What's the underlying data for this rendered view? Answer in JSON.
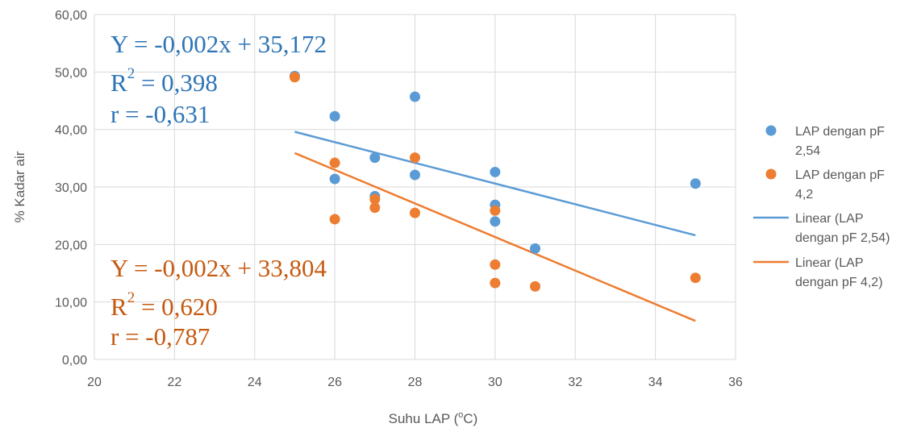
{
  "chart_data": {
    "type": "scatter",
    "xlabel": "Suhu LAP (",
    "xlabel_sup": "o",
    "xlabel_suffix": "C)",
    "ylabel": "% Kadar air",
    "xlim": [
      20,
      36
    ],
    "ylim": [
      0,
      60
    ],
    "xticks": [
      "20",
      "22",
      "24",
      "26",
      "28",
      "30",
      "32",
      "34",
      "36"
    ],
    "yticks": [
      "0,00",
      "10,00",
      "20,00",
      "30,00",
      "40,00",
      "50,00",
      "60,00"
    ],
    "grid": true,
    "legend_position": "right",
    "series": [
      {
        "name": "LAP dengan pF 2,54",
        "legend_lines": [
          "LAP dengan pF",
          "2,54"
        ],
        "color": "#5B9BD5",
        "points": [
          {
            "x": 25,
            "y": 49.3
          },
          {
            "x": 26,
            "y": 42.3
          },
          {
            "x": 26,
            "y": 31.4
          },
          {
            "x": 27,
            "y": 35.1
          },
          {
            "x": 27,
            "y": 28.4
          },
          {
            "x": 28,
            "y": 45.7
          },
          {
            "x": 28,
            "y": 32.1
          },
          {
            "x": 30,
            "y": 32.6
          },
          {
            "x": 30,
            "y": 26.9
          },
          {
            "x": 30,
            "y": 24.0
          },
          {
            "x": 31,
            "y": 19.3
          },
          {
            "x": 35,
            "y": 30.6
          }
        ]
      },
      {
        "name": "LAP dengan pF 4,2",
        "legend_lines": [
          "LAP dengan pF",
          "4,2"
        ],
        "color": "#ED7D31",
        "points": [
          {
            "x": 25,
            "y": 49.1
          },
          {
            "x": 26,
            "y": 34.2
          },
          {
            "x": 26,
            "y": 24.4
          },
          {
            "x": 27,
            "y": 27.9
          },
          {
            "x": 27,
            "y": 26.4
          },
          {
            "x": 28,
            "y": 35.1
          },
          {
            "x": 28,
            "y": 25.5
          },
          {
            "x": 30,
            "y": 25.9
          },
          {
            "x": 30,
            "y": 16.5
          },
          {
            "x": 30,
            "y": 13.3
          },
          {
            "x": 31,
            "y": 12.7
          },
          {
            "x": 35,
            "y": 14.2
          }
        ]
      }
    ],
    "trendlines": [
      {
        "name": "Linear (LAP dengan pF 2,54)",
        "legend_lines": [
          "Linear (LAP",
          "dengan pF 2,54)"
        ],
        "color": "#5B9BD5",
        "x": [
          25,
          35
        ],
        "y": [
          39.6,
          21.6
        ],
        "equation": "Y = -0,002x + 35,172",
        "r2_prefix": "R",
        "r2_sup": "2",
        "r2_value": " = 0,398",
        "r": "r = -0,631"
      },
      {
        "name": "Linear (LAP dengan pF 4,2)",
        "legend_lines": [
          "Linear (LAP",
          "dengan pF 4,2)"
        ],
        "color": "#ED7D31",
        "x": [
          25,
          35
        ],
        "y": [
          35.9,
          6.7
        ],
        "equation": "Y = -0,002x + 33,804",
        "r2_prefix": "R",
        "r2_sup": "2",
        "r2_value": " = 0,620",
        "r": "r = -0,787"
      }
    ]
  }
}
